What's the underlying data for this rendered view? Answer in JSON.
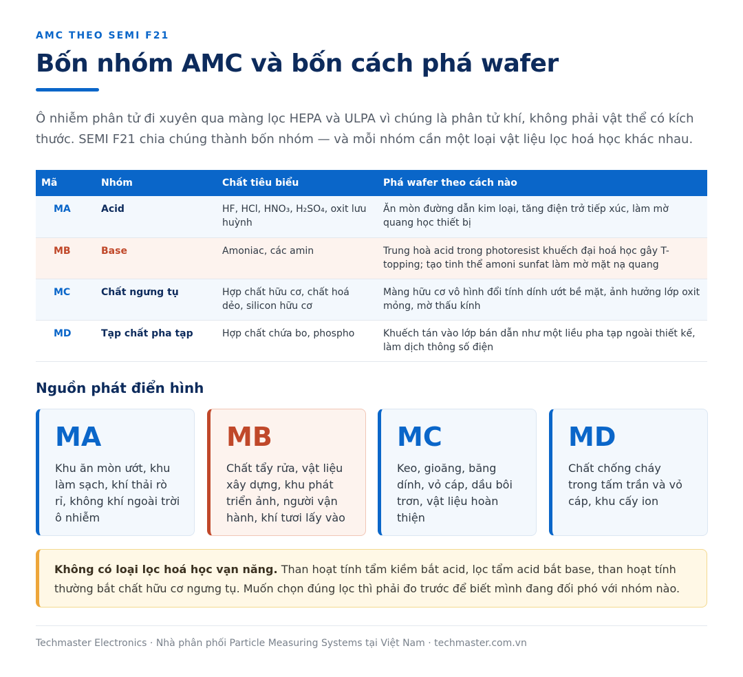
{
  "header": {
    "eyebrow": "AMC THEO SEMI F21",
    "title": "Bốn nhóm AMC và bốn cách phá wafer"
  },
  "intro": "Ô nhiễm phân tử đi xuyên qua màng lọc HEPA và ULPA vì chúng là phân tử khí, không phải vật thể có kích thước. SEMI F21 chia chúng thành bốn nhóm — và mỗi nhóm cần một loại vật liệu lọc hoá học khác nhau.",
  "table": {
    "columns": [
      "Mã",
      "Nhóm",
      "Chất tiêu biểu",
      "Phá wafer theo cách nào"
    ],
    "rows": [
      [
        "MA",
        "Acid",
        "HF, HCl, HNO₃, H₂SO₄, oxit lưu huỳnh",
        "Ăn mòn đường dẫn kim loại, tăng điện trở tiếp xúc, làm mờ quang học thiết bị"
      ],
      [
        "MB",
        "Base",
        "Amoniac, các amin",
        "Trung hoà acid trong photoresist khuếch đại hoá học gây T-topping; tạo tinh thể amoni sunfat làm mờ mặt nạ quang"
      ],
      [
        "MC",
        "Chất ngưng tụ",
        "Hợp chất hữu cơ, chất hoá dẻo, silicon hữu cơ",
        "Màng hữu cơ vô hình đổi tính dính ướt bề mặt, ảnh hưởng lớp oxit mỏng, mờ thấu kính"
      ],
      [
        "MD",
        "Tạp chất pha tạp",
        "Hợp chất chứa bo, phospho",
        "Khuếch tán vào lớp bán dẫn như một liều pha tạp ngoài thiết kế, làm dịch thông số điện"
      ]
    ]
  },
  "sources": {
    "title": "Nguồn phát điển hình",
    "cards": [
      {
        "code": "MA",
        "text": "Khu ăn mòn ướt, khu làm sạch, khí thải rò rỉ, không khí ngoài trời ô nhiễm"
      },
      {
        "code": "MB",
        "text": "Chất tẩy rửa, vật liệu xây dựng, khu phát triển ảnh, người vận hành, khí tươi lấy vào"
      },
      {
        "code": "MC",
        "text": "Keo, gioăng, băng dính, vỏ cáp, dầu bôi trơn, vật liệu hoàn thiện"
      },
      {
        "code": "MD",
        "text": "Chất chống cháy trong tấm trần và vỏ cáp, khu cấy ion"
      }
    ]
  },
  "note": {
    "lead": "Không có loại lọc hoá học vạn năng.",
    "text": "Than hoạt tính tẩm kiềm bắt acid, lọc tẩm acid bắt base, than hoạt tính thường bắt chất hữu cơ ngưng tụ. Muốn chọn đúng lọc thì phải đo trước để biết mình đang đối phó với nhóm nào."
  },
  "footer": "Techmaster Electronics · Nhà phân phối Particle Measuring Systems tại Việt Nam · techmaster.com.vn"
}
